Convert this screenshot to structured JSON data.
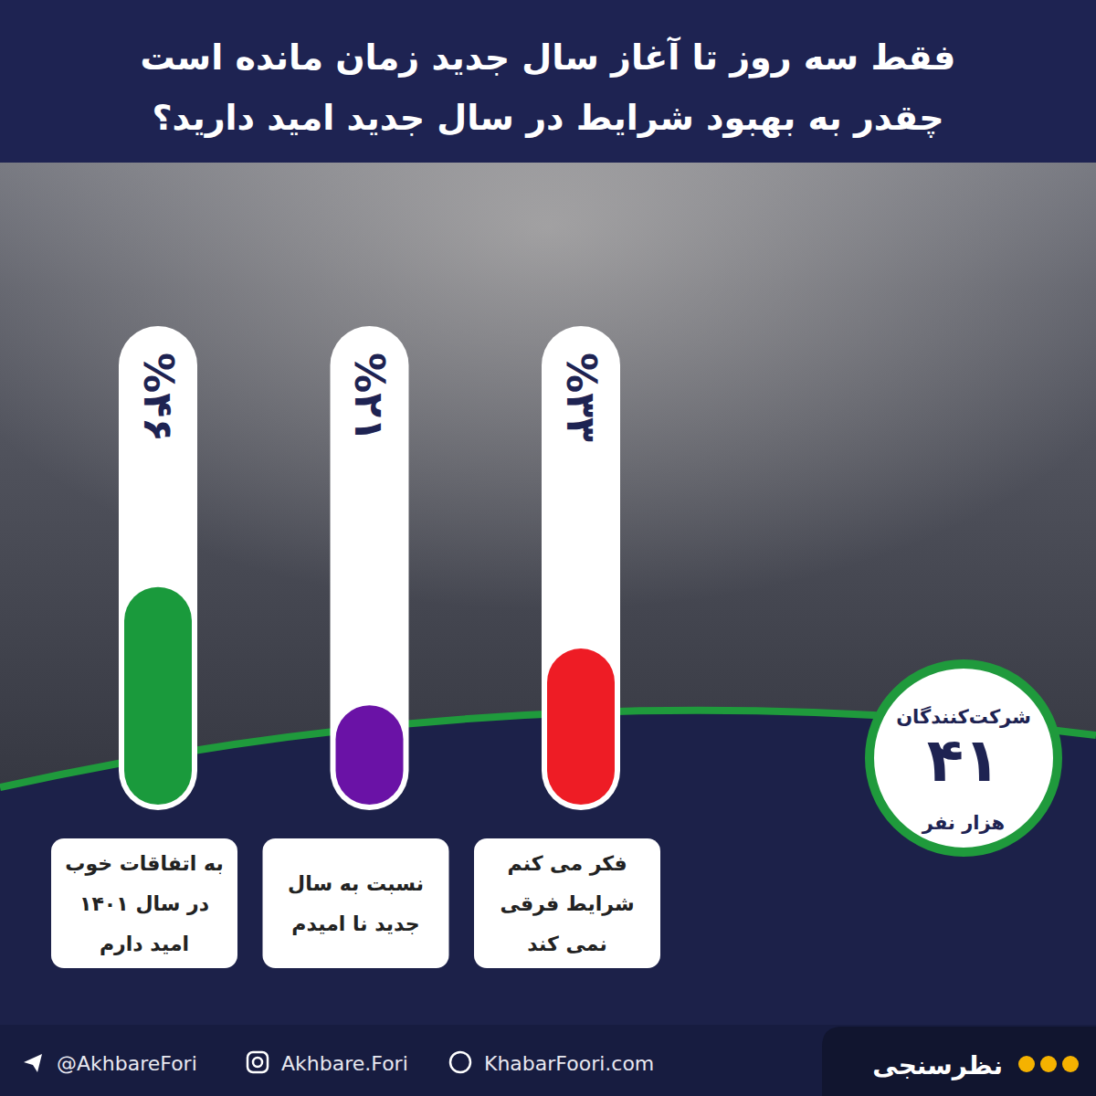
{
  "chart_data": {
    "type": "bar",
    "title": "فقط سه روز تا آغاز سال جدید زمان مانده است",
    "subtitle": "چقدر به بهبود شرایط در سال جدید امید دارید؟",
    "categories": [
      "به اتفاقات خوب\nدر سال ۱۴۰۱\nامید دارم",
      "نسبت به سال\nجدید نا امیدم",
      "فکر می کنم\nشرایط فرقی\nنمی کند"
    ],
    "values": [
      46,
      21,
      33
    ],
    "value_labels": [
      "%۴۶",
      "%۲۱",
      "%۳۳"
    ],
    "colors": [
      "#1a9a3c",
      "#6a12a6",
      "#ee1c25"
    ],
    "ylim": [
      0,
      100
    ],
    "tick_labels": false,
    "data_labels": true,
    "annotations": [
      "شرکت‌کنندگان",
      "۴۱",
      "هزار نفر"
    ],
    "footer": {
      "section": "نظرسنجی",
      "links": [
        "@AkhbareFori",
        "Akhbare.Fori",
        "KhabarFoori.com"
      ]
    }
  }
}
